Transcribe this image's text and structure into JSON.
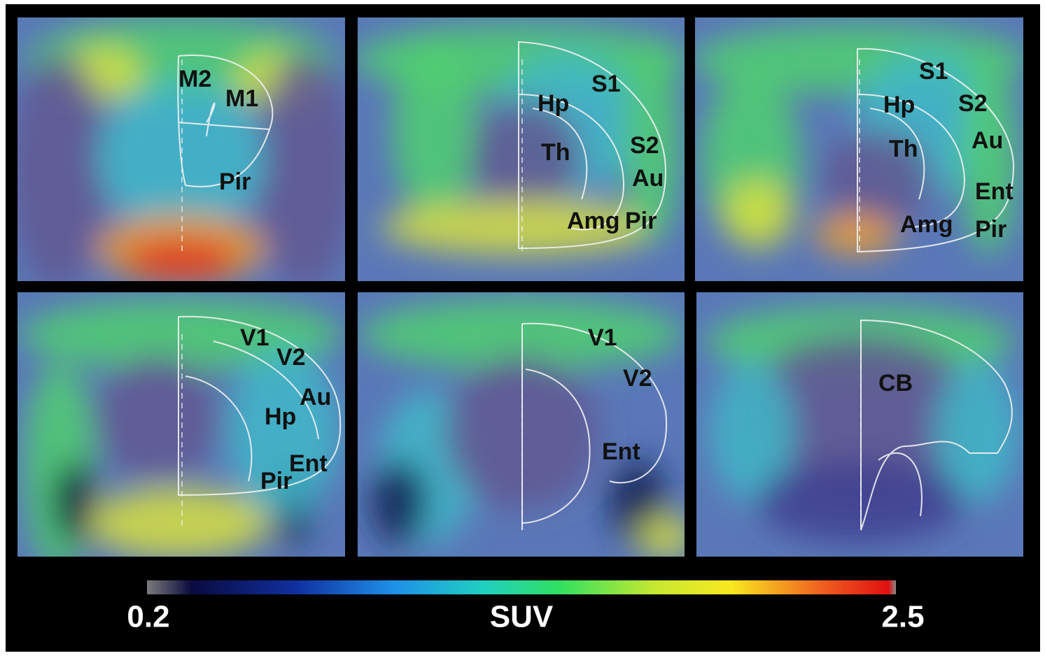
{
  "panels": [
    {
      "labels": [
        "M2",
        "M1",
        "Pir"
      ]
    },
    {
      "labels": [
        "S1",
        "Hp",
        "Th",
        "S2",
        "Au",
        "Amg",
        "Pir"
      ]
    },
    {
      "labels": [
        "S1",
        "Hp",
        "S2",
        "Th",
        "Au",
        "Ent",
        "Amg",
        "Pir"
      ]
    },
    {
      "labels": [
        "V1",
        "V2",
        "Au",
        "Hp",
        "Ent",
        "Pir"
      ]
    },
    {
      "labels": [
        "V1",
        "V2",
        "Ent"
      ]
    },
    {
      "labels": [
        "CB"
      ]
    }
  ],
  "colorbar": {
    "label": "SUV",
    "min": 0.2,
    "max": 2.5
  }
}
